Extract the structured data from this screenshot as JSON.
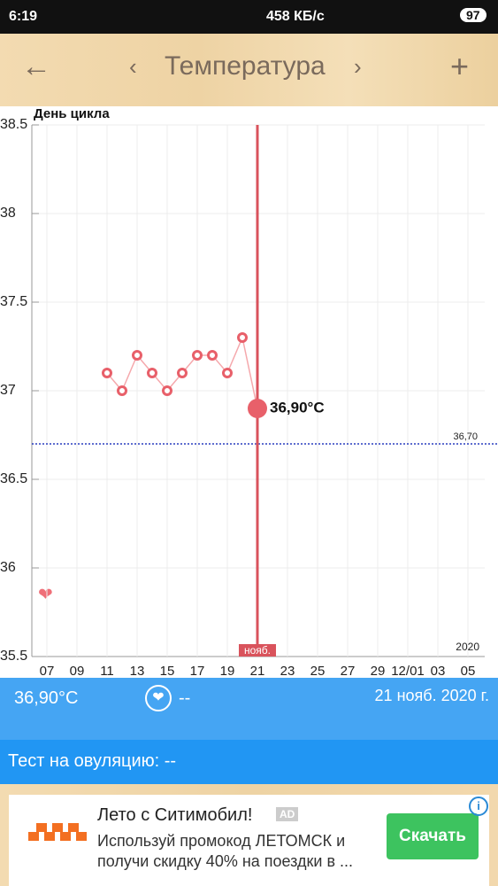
{
  "status_bar": {
    "time": "6:19",
    "speed": "458 КБ/с",
    "battery": "97"
  },
  "header": {
    "title": "Температура"
  },
  "chart_data": {
    "type": "line",
    "axis_title": "День цикла",
    "categories": [
      "07",
      null,
      "09",
      null,
      "11",
      null,
      "13",
      null,
      "15",
      null,
      "17",
      null,
      "19",
      null,
      "21",
      null,
      "23",
      null,
      "25",
      null,
      "27",
      null,
      "29",
      null,
      "12/01",
      null,
      "03",
      null,
      "05"
    ],
    "values": [
      null,
      null,
      null,
      null,
      37.1,
      37.0,
      37.2,
      37.1,
      37.0,
      37.1,
      37.2,
      37.2,
      37.1,
      37.3,
      36.9,
      null,
      null,
      null,
      null,
      null,
      null,
      null,
      null,
      null,
      null,
      null,
      null,
      null,
      null
    ],
    "value_labels": [
      null,
      null,
      null,
      null,
      null,
      null,
      null,
      null,
      null,
      null,
      null,
      null,
      null,
      null,
      "36,90°C",
      null,
      null,
      null,
      null,
      null,
      null,
      null,
      null,
      null,
      null,
      null,
      null,
      null,
      null
    ],
    "color": "#e8606a",
    "line_color": "#f5a8ac",
    "ylim": [
      35.5,
      38.5
    ],
    "yticks": [
      35.5,
      36,
      36.5,
      37,
      37.5,
      38,
      38.5
    ],
    "grid": true,
    "reference_line": {
      "value": 36.7,
      "label": "36,70",
      "color": "#2a3fbf"
    },
    "month_label": "нояб.",
    "year_label": "2020"
  },
  "info": {
    "temperature": "36,90°C",
    "symptom": "--",
    "date": "21 нояб. 2020 г.",
    "ovulation_test": "Тест на овуляцию: --"
  },
  "ad": {
    "title": "Лето с Ситимобил!",
    "badge": "AD",
    "lines": [
      "Используй промокод ЛЕТОМСК и",
      "получи скидку 40% на поездки в ..."
    ],
    "button": "Скачать"
  }
}
